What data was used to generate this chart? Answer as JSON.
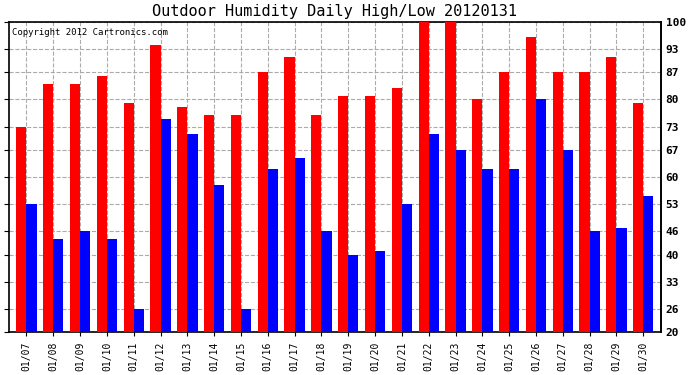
{
  "title": "Outdoor Humidity Daily High/Low 20120131",
  "copyright": "Copyright 2012 Cartronics.com",
  "dates": [
    "01/07",
    "01/08",
    "01/09",
    "01/10",
    "01/11",
    "01/12",
    "01/13",
    "01/14",
    "01/15",
    "01/16",
    "01/17",
    "01/18",
    "01/19",
    "01/20",
    "01/21",
    "01/22",
    "01/23",
    "01/24",
    "01/25",
    "01/26",
    "01/27",
    "01/28",
    "01/29",
    "01/30"
  ],
  "highs": [
    73,
    84,
    84,
    86,
    79,
    94,
    78,
    76,
    76,
    87,
    91,
    76,
    81,
    81,
    83,
    100,
    100,
    80,
    87,
    96,
    87,
    87,
    91,
    79
  ],
  "lows": [
    53,
    44,
    46,
    44,
    26,
    75,
    71,
    58,
    26,
    62,
    65,
    46,
    40,
    41,
    53,
    71,
    67,
    62,
    62,
    80,
    67,
    46,
    47,
    55
  ],
  "high_color": "#ff0000",
  "low_color": "#0000ff",
  "bg_color": "#ffffff",
  "grid_color": "#aaaaaa",
  "ymin": 20,
  "ymax": 100,
  "yticks": [
    20,
    26,
    33,
    40,
    46,
    53,
    60,
    67,
    73,
    80,
    87,
    93,
    100
  ],
  "bar_width": 0.38
}
